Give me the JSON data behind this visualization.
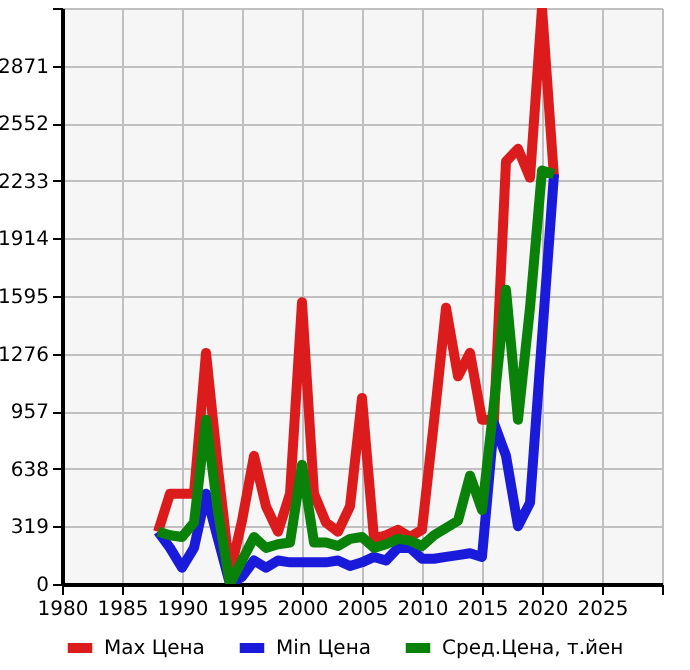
{
  "chart_data": {
    "type": "line",
    "x": [
      1988,
      1989,
      1990,
      1991,
      1992,
      1993,
      1994,
      1995,
      1996,
      1997,
      1998,
      1999,
      2000,
      2001,
      2002,
      2003,
      2004,
      2005,
      2006,
      2007,
      2008,
      2009,
      2010,
      2011,
      2012,
      2013,
      2014,
      2015,
      2016,
      2017,
      2018,
      2019,
      2020,
      2021
    ],
    "series": [
      {
        "name": "Max Цена",
        "color": "#dc1c1c",
        "values": [
          290,
          500,
          500,
          500,
          1280,
          640,
          60,
          350,
          710,
          430,
          290,
          500,
          1560,
          500,
          340,
          290,
          430,
          1030,
          250,
          270,
          300,
          260,
          300,
          900,
          1530,
          1150,
          1280,
          910,
          910,
          2340,
          2410,
          2250,
          3190,
          2250
        ]
      },
      {
        "name": "Min Цена",
        "color": "#1a1adb",
        "values": [
          290,
          200,
          90,
          200,
          500,
          250,
          0,
          40,
          130,
          90,
          130,
          120,
          120,
          120,
          120,
          130,
          100,
          120,
          150,
          130,
          200,
          200,
          140,
          140,
          150,
          160,
          170,
          150,
          890,
          710,
          320,
          450,
          1360,
          2270
        ]
      },
      {
        "name": "Сред.Цена, т.йен",
        "color": "#0a820a",
        "values": [
          290,
          270,
          260,
          340,
          910,
          400,
          0,
          130,
          260,
          200,
          220,
          230,
          660,
          230,
          230,
          210,
          250,
          260,
          200,
          220,
          250,
          240,
          210,
          270,
          310,
          350,
          600,
          410,
          1000,
          1630,
          910,
          1530,
          2290,
          2270
        ]
      }
    ],
    "xlim": [
      1980,
      2030
    ],
    "xticks": [
      1980,
      1985,
      1990,
      1995,
      2000,
      2005,
      2010,
      2015,
      2020,
      2025,
      {
        "value": 2030,
        "label": null
      }
    ],
    "ylim": [
      0,
      3190
    ],
    "yticks": [
      0,
      319,
      638,
      957,
      1276,
      1595,
      1914,
      2233,
      2552,
      2871,
      {
        "value": 3190,
        "label": null
      }
    ],
    "grid": true,
    "legend": "bottom",
    "marker": "none",
    "line_style": "solid"
  }
}
